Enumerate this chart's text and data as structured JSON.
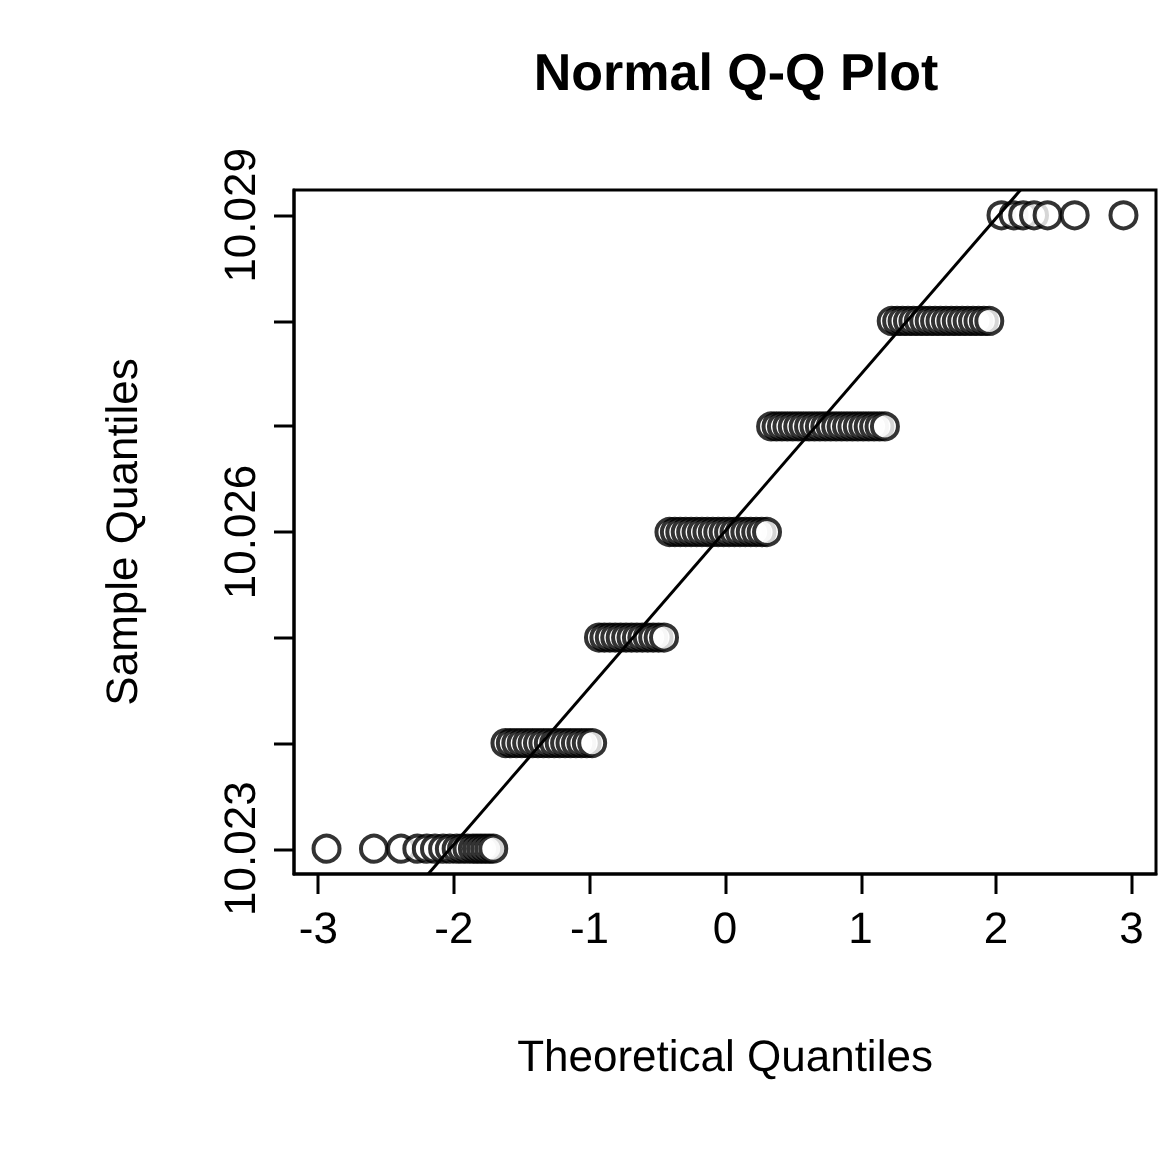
{
  "chart_data": {
    "type": "scatter",
    "title": "Normal Q-Q Plot",
    "xlabel": "Theoretical Quantiles",
    "ylabel": "Sample Quantiles",
    "xlim": [
      -3.18,
      3.18
    ],
    "ylim": [
      10.02276,
      10.02924
    ],
    "xticks": [
      -3,
      -2,
      -1,
      0,
      1,
      2,
      3
    ],
    "yticks": [
      10.023,
      {
        "value": 10.024,
        "label": null
      },
      {
        "value": 10.025,
        "label": null
      },
      10.026,
      {
        "value": 10.027,
        "label": null
      },
      {
        "value": 10.028,
        "label": null
      },
      10.029
    ],
    "grid": false,
    "series": [
      {
        "color": "#000000",
        "marker": "circle",
        "x": [
          -2.94,
          -2.59,
          -2.39,
          -2.27,
          -2.2,
          -2.14,
          -2.08,
          -2.03,
          -1.98,
          -1.94,
          -1.9,
          -1.86,
          -1.83,
          -1.8,
          -1.77,
          -1.74,
          -1.71,
          -1.62,
          -1.58,
          -1.54,
          -1.5,
          -1.46,
          -1.42,
          -1.38,
          -1.34,
          -1.3,
          -1.26,
          -1.22,
          -1.18,
          -1.14,
          -1.1,
          -1.06,
          -1.02,
          -0.98,
          -0.93,
          -0.89,
          -0.85,
          -0.81,
          -0.77,
          -0.73,
          -0.69,
          -0.65,
          -0.61,
          -0.57,
          -0.53,
          -0.49,
          -0.45,
          -0.41,
          -0.37,
          -0.33,
          -0.29,
          -0.25,
          -0.21,
          -0.17,
          -0.13,
          -0.09,
          -0.05,
          -0.01,
          0.03,
          0.07,
          0.11,
          0.15,
          0.19,
          0.23,
          0.27,
          0.31,
          0.34,
          0.38,
          0.42,
          0.46,
          0.5,
          0.54,
          0.58,
          0.62,
          0.66,
          0.7,
          0.74,
          0.78,
          0.82,
          0.86,
          0.9,
          0.94,
          0.98,
          1.02,
          1.06,
          1.1,
          1.14,
          1.18,
          1.23,
          1.27,
          1.31,
          1.35,
          1.39,
          1.43,
          1.47,
          1.51,
          1.55,
          1.59,
          1.63,
          1.67,
          1.71,
          1.75,
          1.79,
          1.83,
          1.87,
          1.91,
          1.95,
          2.04,
          2.13,
          2.2,
          2.28,
          2.38,
          2.58,
          2.94
        ],
        "values": [
          10.023,
          10.023,
          10.023,
          10.023,
          10.023,
          10.023,
          10.023,
          10.023,
          10.023,
          10.023,
          10.023,
          10.023,
          10.023,
          10.023,
          10.023,
          10.023,
          10.023,
          10.024,
          10.024,
          10.024,
          10.024,
          10.024,
          10.024,
          10.024,
          10.024,
          10.024,
          10.024,
          10.024,
          10.024,
          10.024,
          10.024,
          10.024,
          10.024,
          10.024,
          10.025,
          10.025,
          10.025,
          10.025,
          10.025,
          10.025,
          10.025,
          10.025,
          10.025,
          10.025,
          10.025,
          10.025,
          10.025,
          10.026,
          10.026,
          10.026,
          10.026,
          10.026,
          10.026,
          10.026,
          10.026,
          10.026,
          10.026,
          10.026,
          10.026,
          10.026,
          10.026,
          10.026,
          10.026,
          10.026,
          10.026,
          10.026,
          10.027,
          10.027,
          10.027,
          10.027,
          10.027,
          10.027,
          10.027,
          10.027,
          10.027,
          10.027,
          10.027,
          10.027,
          10.027,
          10.027,
          10.027,
          10.027,
          10.027,
          10.027,
          10.027,
          10.027,
          10.027,
          10.027,
          10.028,
          10.028,
          10.028,
          10.028,
          10.028,
          10.028,
          10.028,
          10.028,
          10.028,
          10.028,
          10.028,
          10.028,
          10.028,
          10.028,
          10.028,
          10.028,
          10.028,
          10.028,
          10.028,
          10.029,
          10.029,
          10.029,
          10.029,
          10.029,
          10.029,
          10.029
        ]
      },
      {
        "type": "line",
        "color": "#000000",
        "marker": "none",
        "line_style": "solid",
        "x": [
          -2.19,
          2.18
        ],
        "values": [
          10.02276,
          10.02924
        ]
      }
    ]
  }
}
